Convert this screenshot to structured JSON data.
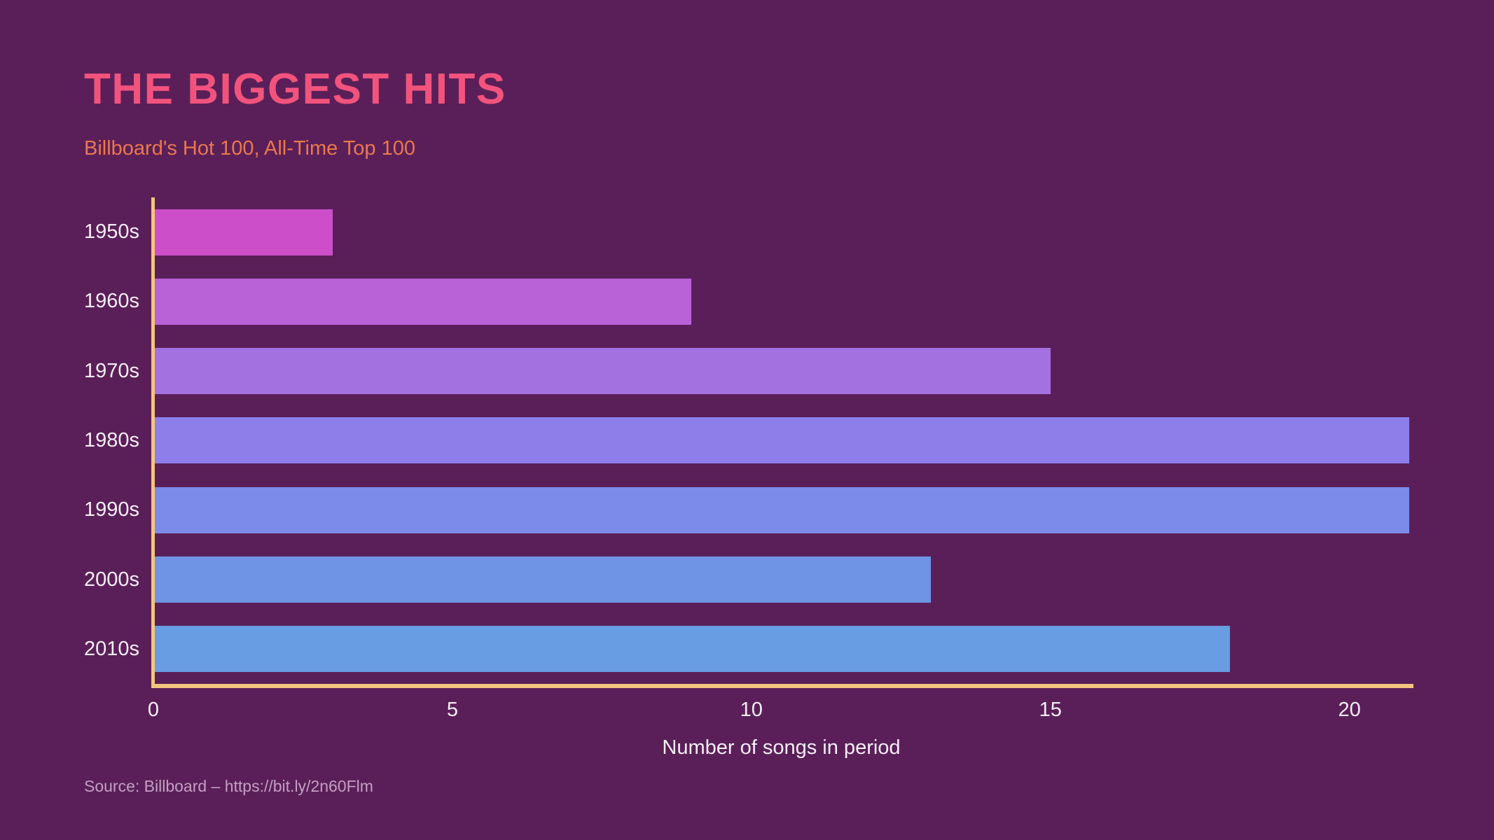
{
  "chart_data": {
    "type": "bar",
    "orientation": "horizontal",
    "title": "THE BIGGEST HITS",
    "subtitle": "Billboard's Hot 100, All-Time Top 100",
    "categories": [
      "1950s",
      "1960s",
      "1970s",
      "1980s",
      "1990s",
      "2000s",
      "2010s"
    ],
    "values": [
      3,
      9,
      15,
      21,
      21,
      13,
      18
    ],
    "xlabel": "Number of songs in period",
    "x_ticks": [
      0,
      5,
      10,
      15,
      20
    ],
    "xlim": [
      0,
      21
    ],
    "grid": false,
    "legend": false,
    "source": "Source: Billboard – https://bit.ly/2n60Flm",
    "bar_colors": [
      "#cc4fc9",
      "#b961d7",
      "#a471e1",
      "#8e7ee9",
      "#7c8ae9",
      "#6f94e5",
      "#689ce3"
    ],
    "colors": {
      "background": "#5a1f58",
      "title": "#f2537d",
      "subtitle": "#e9784e",
      "axis": "#f3c67e",
      "text": "#f6eef6",
      "source": "#c49fc2"
    }
  }
}
